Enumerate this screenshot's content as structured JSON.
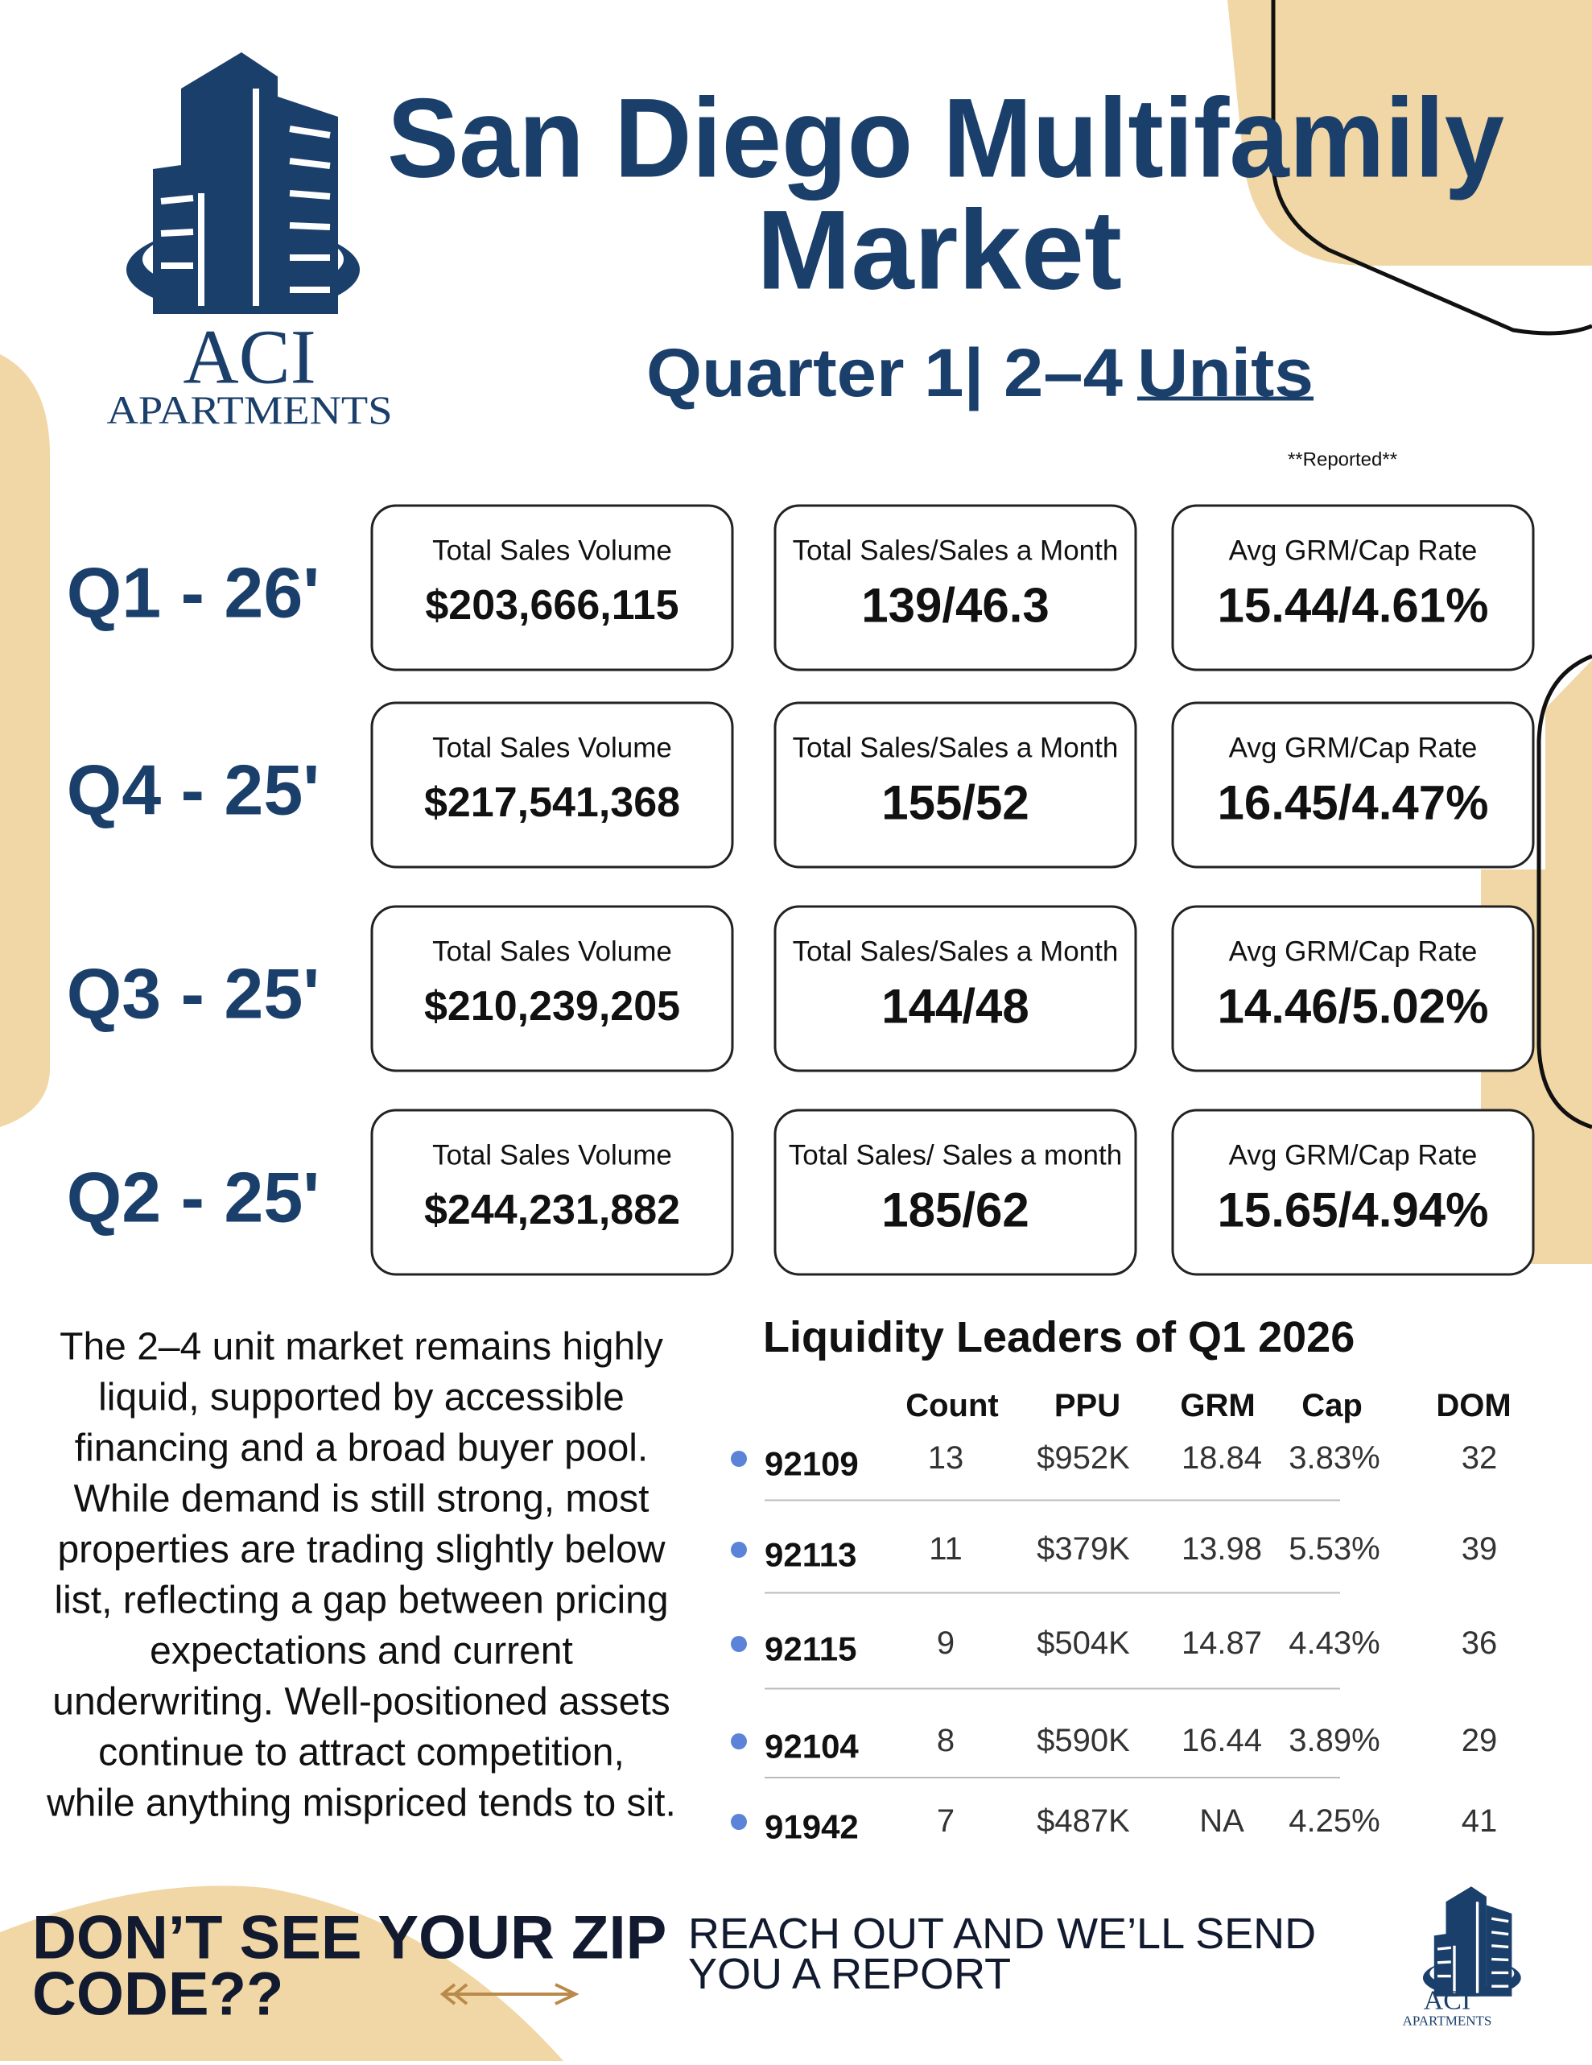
{
  "header": {
    "title_lines": [
      "San Diego Multifamily",
      "Market"
    ],
    "subtitle": "Quarter 1| 2–4",
    "subtitle_underlined": "Units",
    "note": "**Reported**"
  },
  "logo": {
    "name": "ACI",
    "tagline": "APARTMENTS"
  },
  "quarters": [
    {
      "label": "Q1 - 26'",
      "cards": [
        {
          "label": "Total Sales Volume",
          "value": "$203,666,115"
        },
        {
          "label": "Total Sales/Sales a Month",
          "value": "139/46.3"
        },
        {
          "label": "Avg GRM/Cap Rate",
          "value": "15.44/4.61%"
        }
      ]
    },
    {
      "label": "Q4 - 25'",
      "cards": [
        {
          "label": "Total Sales Volume",
          "value": "$217,541,368"
        },
        {
          "label": "Total Sales/Sales a Month",
          "value": "155/52"
        },
        {
          "label": "Avg GRM/Cap Rate",
          "value": "16.45/4.47%"
        }
      ]
    },
    {
      "label": "Q3 - 25'",
      "cards": [
        {
          "label": "Total Sales Volume",
          "value": "$210,239,205"
        },
        {
          "label": "Total Sales/Sales a Month",
          "value": "144/48"
        },
        {
          "label": "Avg GRM/Cap Rate",
          "value": "14.46/5.02%"
        }
      ]
    },
    {
      "label": "Q2 - 25'",
      "cards": [
        {
          "label": "Total Sales Volume",
          "value": "$244,231,882"
        },
        {
          "label": "Total Sales/ Sales a month",
          "value": "185/62"
        },
        {
          "label": "Avg GRM/Cap Rate",
          "value": "15.65/4.94%"
        }
      ]
    }
  ],
  "paragraph_lines": [
    "The 2–4 unit market remains highly",
    "liquid, supported by accessible",
    "financing and a broad buyer pool.",
    "While demand is still strong, most",
    "properties are trading slightly below",
    "list, reflecting a gap between pricing",
    "expectations and current",
    "underwriting. Well-positioned assets",
    "continue to attract competition,",
    "while anything mispriced tends to sit."
  ],
  "table": {
    "title": "Liquidity Leaders of Q1 2026",
    "columns": [
      "Count",
      "PPU",
      "GRM",
      "Cap",
      "DOM"
    ],
    "rows": [
      [
        "92109",
        "13",
        "$952K",
        "18.84",
        "3.83%",
        "32"
      ],
      [
        "92113",
        "11",
        "$379K",
        "13.98",
        "5.53%",
        "39"
      ],
      [
        "92115",
        "9",
        "$504K",
        "14.87",
        "4.43%",
        "36"
      ],
      [
        "92104",
        "8",
        "$590K",
        "16.44",
        "3.89%",
        "29"
      ],
      [
        "91942",
        "7",
        "$487K",
        "NA",
        "4.25%",
        "41"
      ]
    ]
  },
  "footer": {
    "cta_lines": [
      "DON’T SEE YOUR ZIP",
      "CODE??"
    ],
    "reach_lines": [
      "REACH OUT AND WE’LL SEND",
      "YOU A REPORT"
    ]
  }
}
